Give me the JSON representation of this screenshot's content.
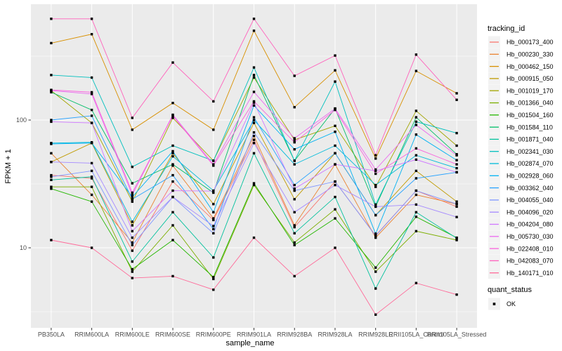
{
  "chart_data": {
    "type": "line",
    "title": "",
    "xlabel": "sample_name",
    "ylabel": "FPKM + 1",
    "y_scale": "log10",
    "y_ticks": [
      100,
      10
    ],
    "y_minor_gridlines": [
      316.23,
      31.623,
      3.1623
    ],
    "ylim": [
      2.4,
      790
    ],
    "grid": "major-and-minor-white-on-gray",
    "panel_bg": "#ebebeb",
    "gridline_color": "#ffffff",
    "tick_color": "#333333",
    "tick_label_color": "#4d4d4d",
    "point_color": "#000000",
    "point_shape": "square",
    "legend_position": "right",
    "legend_title": "tracking_id",
    "legend_key_bg": "#f2f2f2",
    "quant_legend": {
      "title": "quant_status",
      "items": [
        "OK"
      ]
    },
    "categories": [
      "PB350LA",
      "RRIM600LA",
      "RRIM600LE",
      "RRIM600SE",
      "RRIM600PE",
      "RRIM901LA",
      "RRIM928BA",
      "RRIM928LA",
      "RRIM928LE",
      "RRII105LA_Control",
      "RRII105LA_Stressed"
    ],
    "series": [
      {
        "name": "Hb_000173_400",
        "color": "#F8766D",
        "values": [
          37,
          35,
          9.5,
          33,
          16.5,
          70,
          14.5,
          33,
          12.5,
          28,
          21
        ]
      },
      {
        "name": "Hb_000230_330",
        "color": "#EA8331",
        "values": [
          55,
          26,
          11,
          44,
          17,
          75,
          15,
          45,
          12,
          26,
          22
        ]
      },
      {
        "name": "Hb_000462_150",
        "color": "#D89000",
        "values": [
          400,
          470,
          84,
          136,
          84,
          500,
          126,
          245,
          50,
          242,
          162
        ]
      },
      {
        "name": "Hb_000915_050",
        "color": "#C09B00",
        "values": [
          47,
          66,
          15,
          55,
          22,
          95,
          24,
          55,
          18,
          40,
          23
        ]
      },
      {
        "name": "Hb_001019_170",
        "color": "#A3A500",
        "values": [
          170,
          95,
          23,
          104,
          48,
          215,
          70,
          90,
          30,
          118,
          63
        ]
      },
      {
        "name": "Hb_001366_040",
        "color": "#7CAE00",
        "values": [
          30,
          30,
          6.5,
          15,
          5.7,
          31,
          11,
          20,
          6.5,
          13.5,
          11.5
        ]
      },
      {
        "name": "Hb_001504_160",
        "color": "#24B700",
        "values": [
          29,
          23,
          6.8,
          11.5,
          5.9,
          32,
          10.5,
          17,
          7,
          17.5,
          12
        ]
      },
      {
        "name": "Hb_001584_110",
        "color": "#00BE67",
        "values": [
          165,
          120,
          32,
          45,
          27,
          225,
          48,
          123,
          21,
          105,
          54
        ]
      },
      {
        "name": "Hb_001871_040",
        "color": "#00C19C",
        "values": [
          34,
          36,
          7.8,
          19,
          8.4,
          55,
          13,
          25,
          4.8,
          19,
          11.9
        ]
      },
      {
        "name": "Hb_002341_030",
        "color": "#00C0BE",
        "values": [
          225,
          215,
          43,
          63,
          48,
          258,
          48,
          200,
          21.8,
          97,
          79
        ]
      },
      {
        "name": "Hb_002874_070",
        "color": "#00BBDA",
        "values": [
          66,
          67,
          16,
          52,
          28,
          100,
          45,
          63,
          31,
          53,
          42
        ]
      },
      {
        "name": "Hb_002928_060",
        "color": "#00B2F3",
        "values": [
          65,
          66,
          25,
          57,
          19,
          130,
          59,
          81,
          12.9,
          77,
          48.5
        ]
      },
      {
        "name": "Hb_003362_040",
        "color": "#29A3FF",
        "values": [
          100,
          108,
          24,
          37,
          14,
          105,
          31,
          55,
          18,
          35,
          39
        ]
      },
      {
        "name": "Hb_004055_040",
        "color": "#7F96FF",
        "values": [
          36,
          40,
          10.5,
          25,
          13,
          80,
          28,
          33,
          12.4,
          28,
          22
        ]
      },
      {
        "name": "Hb_004096_020",
        "color": "#A58AFF",
        "values": [
          47,
          46,
          12,
          25,
          14.8,
          66,
          19,
          31,
          21,
          21.8,
          17.4
        ]
      },
      {
        "name": "Hb_004204_080",
        "color": "#CF78FF",
        "values": [
          97,
          95,
          13.5,
          28,
          27.8,
          137,
          29,
          45,
          40,
          49,
          39
        ]
      },
      {
        "name": "Hb_005730_030",
        "color": "#EB69EF",
        "values": [
          170,
          160,
          26,
          110,
          45,
          166,
          72,
          123,
          41,
          91.5,
          53
        ]
      },
      {
        "name": "Hb_022408_010",
        "color": "#F962DD",
        "values": [
          172,
          165,
          27,
          108,
          44,
          140,
          67,
          120,
          38,
          60,
          45
        ]
      },
      {
        "name": "Hb_042083_070",
        "color": "#FF62BC",
        "values": [
          620,
          620,
          104,
          282,
          140,
          620,
          222,
          320,
          53,
          325,
          144
        ]
      },
      {
        "name": "Hb_140171_010",
        "color": "#FF6A99",
        "values": [
          11.5,
          10,
          5.8,
          6,
          4.7,
          12,
          6,
          10,
          3,
          5.3,
          4.3
        ]
      }
    ]
  }
}
